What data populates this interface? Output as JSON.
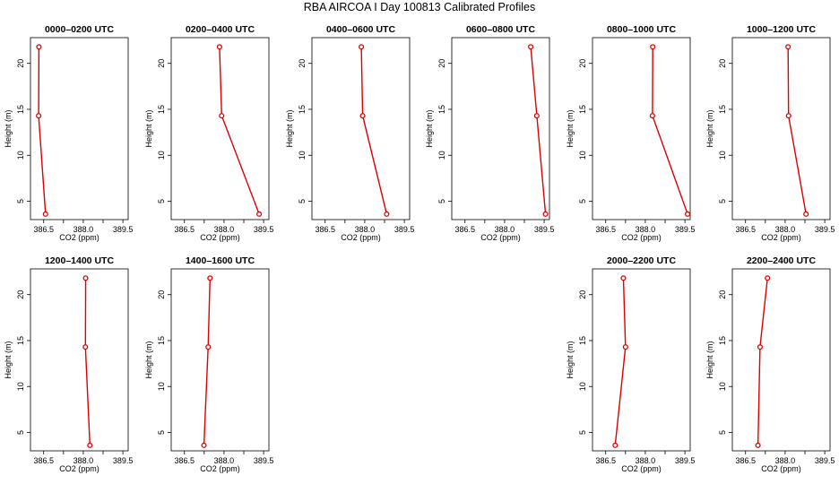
{
  "page": {
    "title": "RBA AIRCOA I  Day 100813  Calibrated Profiles"
  },
  "chart_data": [
    {
      "type": "line",
      "title": "0000–0200 UTC",
      "xlabel": "CO2 (ppm)",
      "ylabel": "Height (m)",
      "xlim": [
        386.0,
        389.7
      ],
      "ylim": [
        3.0,
        22.8
      ],
      "xticks": [
        "386.5",
        "388.0",
        "389.5"
      ],
      "yticks": [
        "5",
        "10",
        "15",
        "20"
      ],
      "x": [
        386.32,
        386.31,
        386.57
      ],
      "y": [
        21.8,
        14.3,
        3.6
      ]
    },
    {
      "type": "line",
      "title": "0200–0400 UTC",
      "xlabel": "CO2 (ppm)",
      "ylabel": "Height (m)",
      "xlim": [
        386.0,
        389.7
      ],
      "ylim": [
        3.0,
        22.8
      ],
      "xticks": [
        "386.5",
        "388.0",
        "389.5"
      ],
      "yticks": [
        "5",
        "10",
        "15",
        "20"
      ],
      "x": [
        387.83,
        387.91,
        389.33
      ],
      "y": [
        21.8,
        14.3,
        3.6
      ]
    },
    {
      "type": "line",
      "title": "0400–0600 UTC",
      "xlabel": "CO2 (ppm)",
      "ylabel": "Height (m)",
      "xlim": [
        386.0,
        389.7
      ],
      "ylim": [
        3.0,
        22.8
      ],
      "xticks": [
        "386.5",
        "388.0",
        "389.5"
      ],
      "yticks": [
        "5",
        "10",
        "15",
        "20"
      ],
      "x": [
        387.87,
        387.92,
        388.83
      ],
      "y": [
        21.8,
        14.3,
        3.6
      ]
    },
    {
      "type": "line",
      "title": "0600–0800 UTC",
      "xlabel": "CO2 (ppm)",
      "ylabel": "Height (m)",
      "xlim": [
        386.0,
        389.7
      ],
      "ylim": [
        3.0,
        22.8
      ],
      "xticks": [
        "386.5",
        "388.0",
        "389.5"
      ],
      "yticks": [
        "5",
        "10",
        "15",
        "20"
      ],
      "x": [
        388.99,
        389.22,
        389.55
      ],
      "y": [
        21.8,
        14.3,
        3.6
      ]
    },
    {
      "type": "line",
      "title": "0800–1000 UTC",
      "xlabel": "CO2 (ppm)",
      "ylabel": "Height (m)",
      "xlim": [
        386.0,
        389.7
      ],
      "ylim": [
        3.0,
        22.8
      ],
      "xticks": [
        "386.5",
        "388.0",
        "389.5"
      ],
      "yticks": [
        "5",
        "10",
        "15",
        "20"
      ],
      "x": [
        388.28,
        388.27,
        389.6
      ],
      "y": [
        21.8,
        14.3,
        3.6
      ]
    },
    {
      "type": "line",
      "title": "1000–1200 UTC",
      "xlabel": "CO2 (ppm)",
      "ylabel": "Height (m)",
      "xlim": [
        386.0,
        389.7
      ],
      "ylim": [
        3.0,
        22.8
      ],
      "xticks": [
        "386.5",
        "388.0",
        "389.5"
      ],
      "yticks": [
        "5",
        "10",
        "15",
        "20"
      ],
      "x": [
        388.11,
        388.13,
        388.79
      ],
      "y": [
        21.8,
        14.3,
        3.6
      ]
    },
    {
      "type": "line",
      "title": "1200–1400 UTC",
      "xlabel": "CO2 (ppm)",
      "ylabel": "Height (m)",
      "xlim": [
        386.0,
        389.7
      ],
      "ylim": [
        3.0,
        22.8
      ],
      "xticks": [
        "386.5",
        "388.0",
        "389.5"
      ],
      "yticks": [
        "5",
        "10",
        "15",
        "20"
      ],
      "x": [
        388.09,
        388.08,
        388.25
      ],
      "y": [
        21.8,
        14.3,
        3.6
      ]
    },
    {
      "type": "line",
      "title": "1400–1600 UTC",
      "xlabel": "CO2 (ppm)",
      "ylabel": "Height (m)",
      "xlim": [
        386.0,
        389.7
      ],
      "ylim": [
        3.0,
        22.8
      ],
      "xticks": [
        "386.5",
        "388.0",
        "389.5"
      ],
      "yticks": [
        "5",
        "10",
        "15",
        "20"
      ],
      "x": [
        387.47,
        387.4,
        387.24
      ],
      "y": [
        21.8,
        14.3,
        3.6
      ]
    },
    {
      "type": "line",
      "title": "2000–2200 UTC",
      "xlabel": "CO2 (ppm)",
      "ylabel": "Height (m)",
      "xlim": [
        386.0,
        389.7
      ],
      "ylim": [
        3.0,
        22.8
      ],
      "xticks": [
        "386.5",
        "388.0",
        "389.5"
      ],
      "yticks": [
        "5",
        "10",
        "15",
        "20"
      ],
      "x": [
        387.17,
        387.25,
        386.86
      ],
      "y": [
        21.8,
        14.3,
        3.6
      ]
    },
    {
      "type": "line",
      "title": "2200–2400 UTC",
      "xlabel": "CO2 (ppm)",
      "ylabel": "Height (m)",
      "xlim": [
        386.0,
        389.7
      ],
      "ylim": [
        3.0,
        22.8
      ],
      "xticks": [
        "386.5",
        "388.0",
        "389.5"
      ],
      "yticks": [
        "5",
        "10",
        "15",
        "20"
      ],
      "x": [
        387.33,
        387.05,
        386.97
      ],
      "y": [
        21.8,
        14.3,
        3.6
      ]
    }
  ]
}
